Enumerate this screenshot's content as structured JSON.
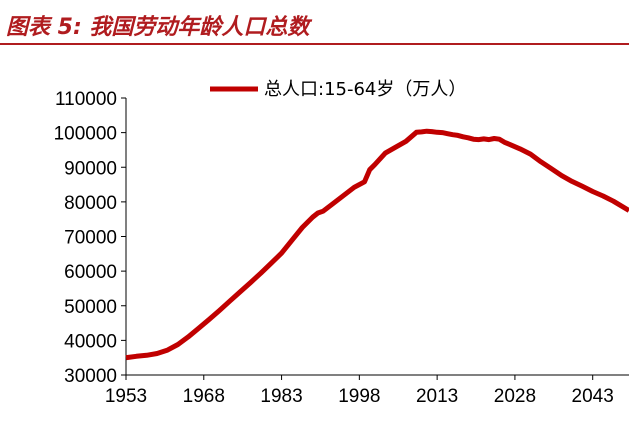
{
  "figure_title": "图表 5:  我国劳动年龄人口总数",
  "chart_data": {
    "type": "line",
    "title": "",
    "xlabel": "",
    "ylabel": "",
    "ylim": [
      30000,
      110000
    ],
    "xlim": [
      1953,
      2050
    ],
    "y_ticks": [
      30000,
      40000,
      50000,
      60000,
      70000,
      80000,
      90000,
      100000,
      110000
    ],
    "y_tick_labels": [
      "30000",
      "40000",
      "50000",
      "60000",
      "70000",
      "80000",
      "90000",
      "100000",
      "110000"
    ],
    "x_ticks": [
      1953,
      1968,
      1983,
      1998,
      2013,
      2028,
      2043
    ],
    "x_tick_labels": [
      "1953",
      "1968",
      "1983",
      "1998",
      "2013",
      "2028",
      "2043"
    ],
    "legend": {
      "position": "top"
    },
    "colors": {
      "series": "#c00000",
      "title": "#b01c1f"
    },
    "series": [
      {
        "name": "总人口:15-64岁（万人）",
        "x": [
          1953,
          1955,
          1957,
          1959,
          1961,
          1963,
          1965,
          1967,
          1969,
          1971,
          1973,
          1975,
          1977,
          1979,
          1981,
          1983,
          1985,
          1987,
          1989,
          1990,
          1991,
          1993,
          1995,
          1997,
          1999,
          2000,
          2001,
          2003,
          2005,
          2007,
          2009,
          2010,
          2011,
          2012,
          2013,
          2014,
          2015,
          2016,
          2017,
          2018,
          2019,
          2020,
          2021,
          2022,
          2023,
          2024,
          2025,
          2026,
          2027,
          2029,
          2031,
          2033,
          2035,
          2037,
          2039,
          2041,
          2043,
          2045,
          2047,
          2050
        ],
        "values": [
          35000,
          35400,
          35700,
          36200,
          37200,
          38800,
          41000,
          43500,
          46000,
          48600,
          51300,
          54000,
          56700,
          59400,
          62300,
          65200,
          68900,
          72600,
          75600,
          76800,
          77300,
          79600,
          81900,
          84200,
          85800,
          89300,
          90800,
          94100,
          95800,
          97500,
          100100,
          100200,
          100400,
          100300,
          100100,
          100000,
          99700,
          99400,
          99200,
          98800,
          98500,
          98100,
          98000,
          98200,
          98000,
          98300,
          98100,
          97200,
          96600,
          95300,
          93800,
          91600,
          89600,
          87600,
          85900,
          84500,
          83000,
          81700,
          80200,
          77500
        ]
      }
    ]
  }
}
